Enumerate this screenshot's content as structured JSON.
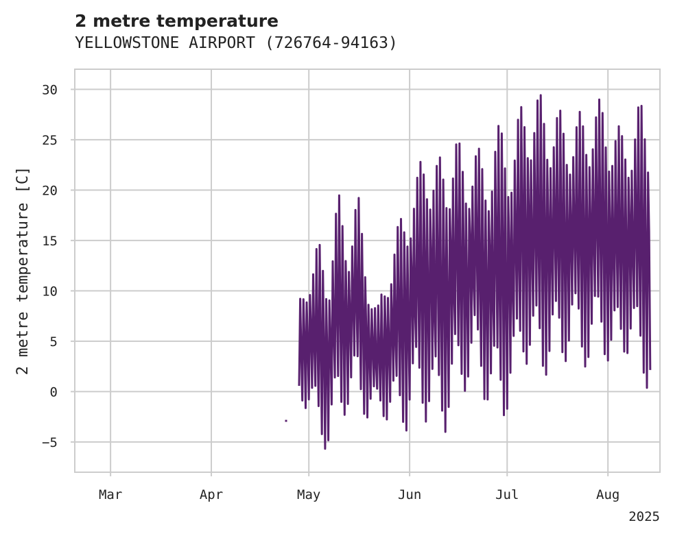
{
  "chart_data": {
    "type": "line",
    "title": "2 metre temperature",
    "subtitle": "YELLOWSTONE AIRPORT (726764-94163)",
    "xlabel": "",
    "ylabel": "2 metre temperature [C]",
    "year_label": "2025",
    "x_tick_labels": [
      "Mar",
      "Apr",
      "May",
      "Jun",
      "Jul",
      "Aug"
    ],
    "x_ticks": [
      "2025-03-01",
      "2025-04-01",
      "2025-05-01",
      "2025-06-01",
      "2025-07-01",
      "2025-08-01"
    ],
    "y_ticks": [
      30,
      25,
      20,
      15,
      10,
      5,
      0,
      -5
    ],
    "y_tick_labels": [
      "30",
      "25",
      "20",
      "15",
      "10",
      "5",
      "0",
      "−5"
    ],
    "xlim": [
      "2025-02-18",
      "2025-08-17"
    ],
    "ylim": [
      -8,
      32
    ],
    "grid": true,
    "line_color": "#58206e",
    "series": [
      {
        "name": "",
        "segments": [
          {
            "x": [
              "2025-04-24",
              "2025-04-24"
            ],
            "y": [
              -3,
              -2.8
            ]
          },
          {
            "x": [
              "2025-04-28",
              "2025-05-01",
              "2025-05-04",
              "2025-05-07",
              "2025-05-10",
              "2025-05-13",
              "2025-05-16",
              "2025-05-19",
              "2025-05-22",
              "2025-05-25",
              "2025-05-28",
              "2025-05-31",
              "2025-06-03",
              "2025-06-06",
              "2025-06-09",
              "2025-06-12",
              "2025-06-15",
              "2025-06-18",
              "2025-06-21",
              "2025-06-24",
              "2025-06-27",
              "2025-06-30",
              "2025-07-03",
              "2025-07-06",
              "2025-07-09",
              "2025-07-12",
              "2025-07-15",
              "2025-07-18",
              "2025-07-21",
              "2025-07-24",
              "2025-07-27",
              "2025-07-30",
              "2025-08-02",
              "2025-08-05",
              "2025-08-08",
              "2025-08-11",
              "2025-08-14"
            ],
            "ymin": [
              -1,
              -2,
              -5,
              -6,
              -3,
              -2,
              -1,
              -3,
              -2,
              -3,
              -3,
              -4,
              -1,
              -3,
              -3,
              -4,
              -1,
              0,
              2,
              -1,
              -2,
              -3,
              0,
              3,
              2,
              1,
              3,
              2,
              5,
              2,
              3,
              4,
              2,
              3,
              4,
              1,
              0
            ],
            "ymax": [
              9,
              13,
              15,
              13,
              20,
              16,
              20,
              13,
              8,
              13,
              16,
              20,
              21,
              26,
              23,
              24,
              26,
              23,
              25,
              23,
              26,
              27,
              25,
              30,
              29,
              30,
              28,
              28,
              27,
              28,
              29,
              29,
              28,
              26,
              27,
              29,
              28
            ]
          }
        ]
      }
    ]
  }
}
